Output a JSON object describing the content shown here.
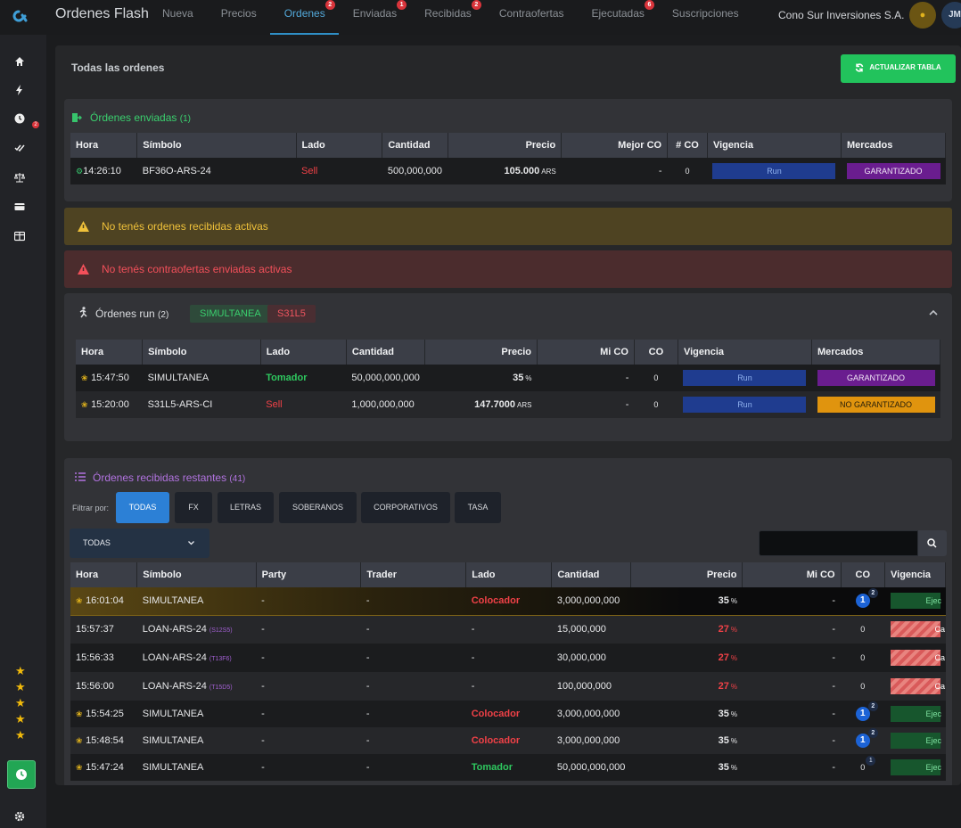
{
  "app": {
    "title": "Ordenes Flash",
    "company": "Cono Sur Inversiones S.A.",
    "avatar": "JM"
  },
  "nav": [
    {
      "label": "Nueva",
      "badge": ""
    },
    {
      "label": "Precios",
      "badge": ""
    },
    {
      "label": "Ordenes",
      "badge": "2"
    },
    {
      "label": "Enviadas",
      "badge": "1"
    },
    {
      "label": "Recibidas",
      "badge": "2"
    },
    {
      "label": "Contraofertas",
      "badge": ""
    },
    {
      "label": "Ejecutadas",
      "badge": "6"
    },
    {
      "label": "Suscripciones",
      "badge": ""
    }
  ],
  "sidebar": {
    "badge": "2"
  },
  "main": {
    "title": "Todas las ordenes",
    "update_button": "ACTUALIZAR TABLA"
  },
  "sent": {
    "title": "Órdenes enviadas",
    "count": "(1)",
    "headers": [
      "Hora",
      "Símbolo",
      "Lado",
      "Cantidad",
      "Precio",
      "Mejor CO",
      "# CO",
      "Vigencia",
      "Mercados"
    ],
    "rows": [
      {
        "time": "14:26:10",
        "symbol": "BF36O-ARS-24",
        "side": "Sell",
        "qty": "500,000,000",
        "price": "105.000",
        "ccy": "ARS",
        "best": "-",
        "co": "0",
        "vig": "Run",
        "mkt": "GARANTIZADO"
      }
    ]
  },
  "alerts": {
    "received": "No tenés ordenes recibidas activas",
    "counter": "No tenés contraofertas enviadas activas"
  },
  "run": {
    "title": "Órdenes run",
    "count": "(2)",
    "chips": [
      "SIMULTANEA",
      "S31L5"
    ],
    "headers": [
      "Hora",
      "Símbolo",
      "Lado",
      "Cantidad",
      "Precio",
      "Mi CO",
      "CO",
      "Vigencia",
      "Mercados"
    ],
    "rows": [
      {
        "time": "15:47:50",
        "symbol": "SIMULTANEA",
        "side": "Tomador",
        "qty": "50,000,000,000",
        "price": "35",
        "unit": "%",
        "mi": "-",
        "co": "0",
        "vig": "Run",
        "mkt": "GARANTIZADO"
      },
      {
        "time": "15:20:00",
        "symbol": "S31L5-ARS-CI",
        "side": "Sell",
        "qty": "1,000,000,000",
        "price": "147.7000",
        "unit": "ARS",
        "mi": "-",
        "co": "0",
        "vig": "Run",
        "mkt": "NO GARANTIZADO"
      }
    ]
  },
  "recv": {
    "title": "Órdenes recibidas restantes",
    "count": "(41)",
    "filter_label": "Filtrar por:",
    "filters": [
      "TODAS",
      "FX",
      "LETRAS",
      "SOBERANOS",
      "CORPORATIVOS",
      "TASA"
    ],
    "select": "TODAS",
    "search_placeholder": "",
    "headers": [
      "Hora",
      "Símbolo",
      "Party",
      "Trader",
      "Lado",
      "Cantidad",
      "Precio",
      "Mi CO",
      "CO",
      "Vigencia"
    ],
    "rows": [
      {
        "time": "16:01:04",
        "symbol": "SIMULTANEA",
        "tag": "",
        "party": "-",
        "trader": "-",
        "side": "Colocador",
        "qty": "3,000,000,000",
        "price": "35",
        "mi": "-",
        "co": "1",
        "sup": "2",
        "vig": "Ejec"
      },
      {
        "time": "15:57:37",
        "symbol": "LOAN-ARS-24",
        "tag": "(S12S5)",
        "party": "-",
        "trader": "-",
        "side": "-",
        "qty": "15,000,000",
        "price": "27",
        "mi": "-",
        "co": "0",
        "sup": "",
        "vig": "Ca"
      },
      {
        "time": "15:56:33",
        "symbol": "LOAN-ARS-24",
        "tag": "(T13F6)",
        "party": "-",
        "trader": "-",
        "side": "-",
        "qty": "30,000,000",
        "price": "27",
        "mi": "-",
        "co": "0",
        "sup": "",
        "vig": "Ca"
      },
      {
        "time": "15:56:00",
        "symbol": "LOAN-ARS-24",
        "tag": "(T15D5)",
        "party": "-",
        "trader": "-",
        "side": "-",
        "qty": "100,000,000",
        "price": "27",
        "mi": "-",
        "co": "0",
        "sup": "",
        "vig": "Ca"
      },
      {
        "time": "15:54:25",
        "symbol": "SIMULTANEA",
        "tag": "",
        "party": "-",
        "trader": "-",
        "side": "Colocador",
        "qty": "3,000,000,000",
        "price": "35",
        "mi": "-",
        "co": "1",
        "sup": "2",
        "vig": "Ejec"
      },
      {
        "time": "15:48:54",
        "symbol": "SIMULTANEA",
        "tag": "",
        "party": "-",
        "trader": "-",
        "side": "Colocador",
        "qty": "3,000,000,000",
        "price": "35",
        "mi": "-",
        "co": "1",
        "sup": "2",
        "vig": "Ejec"
      },
      {
        "time": "15:47:24",
        "symbol": "SIMULTANEA",
        "tag": "",
        "party": "-",
        "trader": "-",
        "side": "Tomador",
        "qty": "50,000,000,000",
        "price": "35",
        "mi": "-",
        "co": "0",
        "sup": "1",
        "vig": "Ejec"
      }
    ],
    "pct": "%"
  }
}
